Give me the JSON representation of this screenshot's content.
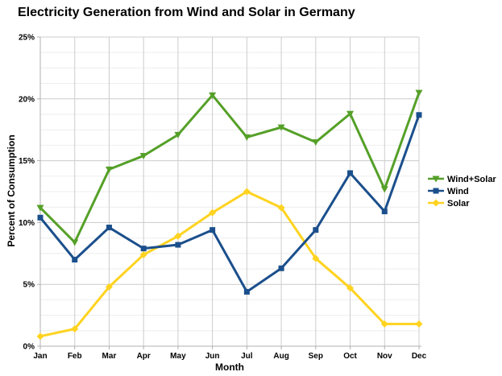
{
  "chart_data": {
    "type": "line",
    "title": "Electricity Generation from Wind and Solar in Germany",
    "xlabel": "Month",
    "ylabel": "Percent of Consumption",
    "categories": [
      "Jan",
      "Feb",
      "Mar",
      "Apr",
      "May",
      "Jun",
      "Jul",
      "Aug",
      "Sep",
      "Oct",
      "Nov",
      "Dec"
    ],
    "y_tick_labels": [
      "0%",
      "5%",
      "10%",
      "15%",
      "20%",
      "25%"
    ],
    "ylim": [
      0,
      25
    ],
    "y_major_step": 5,
    "y_minor_step": 1.25,
    "grid": true,
    "legend_position": "right",
    "series": [
      {
        "name": "Wind+Solar",
        "color": "#55A028",
        "marker": "triangle-down",
        "values": [
          11.2,
          8.4,
          14.3,
          15.4,
          17.1,
          20.3,
          16.9,
          17.7,
          16.5,
          18.8,
          12.7,
          20.5
        ]
      },
      {
        "name": "Wind",
        "color": "#1B4F8C",
        "marker": "square",
        "values": [
          10.4,
          7.0,
          9.6,
          7.9,
          8.2,
          9.4,
          4.4,
          6.3,
          9.4,
          14.0,
          10.9,
          18.7
        ]
      },
      {
        "name": "Solar",
        "color": "#FFD320",
        "marker": "diamond",
        "values": [
          0.8,
          1.4,
          4.8,
          7.4,
          8.9,
          10.8,
          12.5,
          11.2,
          7.1,
          4.7,
          1.8,
          1.8
        ]
      }
    ]
  }
}
